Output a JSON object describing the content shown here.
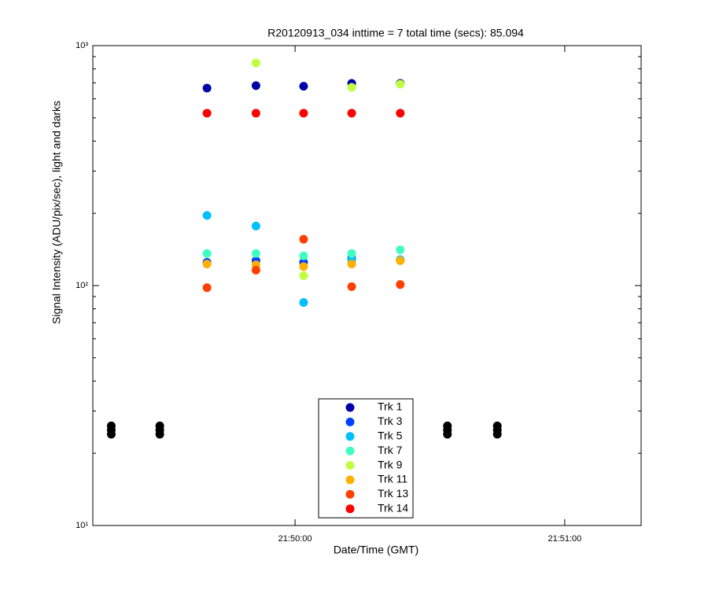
{
  "chart_data": {
    "type": "scatter",
    "title": "R20120913_034 inttime = 7 total time (secs): 85.094",
    "x_label": "Date/Time (GMT)",
    "y_label": "Signal Intensity (ADU/pix/sec), light and darks",
    "log_y": true,
    "xlim": [
      78555,
      78677
    ],
    "xticks": [
      {
        "value": 78600,
        "label": "21:50:00"
      },
      {
        "value": 78660,
        "label": "21:51:00"
      }
    ],
    "ylim": [
      10,
      1000
    ],
    "yticks": [
      {
        "value": 10,
        "label": "10¹"
      },
      {
        "value": 100,
        "label": "10²"
      },
      {
        "value": 1000,
        "label": "10³"
      }
    ],
    "series": [
      {
        "color": "#000000",
        "x": [
          78559.1,
          78559.1,
          78559.1,
          78569.9,
          78569.9,
          78569.9,
          78633.9,
          78633.9,
          78633.9,
          78645.0,
          78645.0,
          78645.0
        ],
        "values": [
          26,
          25,
          24,
          26,
          25,
          24,
          26,
          25,
          24,
          26,
          25,
          24
        ]
      },
      {
        "name": "Trk 1",
        "color": "#0000a8",
        "x": [
          78580.4,
          78591.3,
          78601.9,
          78612.6,
          78623.4
        ],
        "values": [
          665,
          681,
          677,
          696,
          696
        ]
      },
      {
        "name": "Trk 3",
        "color": "#0040ff",
        "x": [
          78580.4,
          78591.3,
          78601.9,
          78612.6,
          78623.4
        ],
        "values": [
          125,
          127,
          125,
          130,
          128
        ]
      },
      {
        "name": "Trk 5",
        "color": "#00bfff",
        "x": [
          78580.4,
          78591.3,
          78601.9,
          78612.6,
          78623.4
        ],
        "values": [
          196,
          177,
          85,
          128,
          128
        ]
      },
      {
        "name": "Trk 7",
        "color": "#40ffc0",
        "x": [
          78580.4,
          78591.3,
          78601.9,
          78612.6,
          78623.4
        ],
        "values": [
          136,
          136,
          133,
          136,
          141
        ]
      },
      {
        "name": "Trk 9",
        "color": "#c0ff40",
        "x": [
          78580.4,
          78591.3,
          78601.9,
          78612.6,
          78623.4
        ],
        "values": [
          null,
          847,
          110,
          670,
          691
        ]
      },
      {
        "name": "Trk 11",
        "color": "#ffb000",
        "x": [
          78580.4,
          78591.3,
          78601.9,
          78612.6,
          78623.4
        ],
        "values": [
          123,
          122,
          120,
          123,
          127
        ]
      },
      {
        "name": "Trk 13",
        "color": "#ff4000",
        "x": [
          78580.4,
          78591.3,
          78601.9,
          78612.6,
          78623.4
        ],
        "values": [
          98,
          116,
          156,
          99,
          101
        ]
      },
      {
        "name": "Trk 14",
        "color": "#ff0000",
        "x": [
          78580.4,
          78591.3,
          78601.9,
          78612.6,
          78623.4
        ],
        "values": [
          523,
          523,
          523,
          523,
          523
        ]
      }
    ]
  }
}
